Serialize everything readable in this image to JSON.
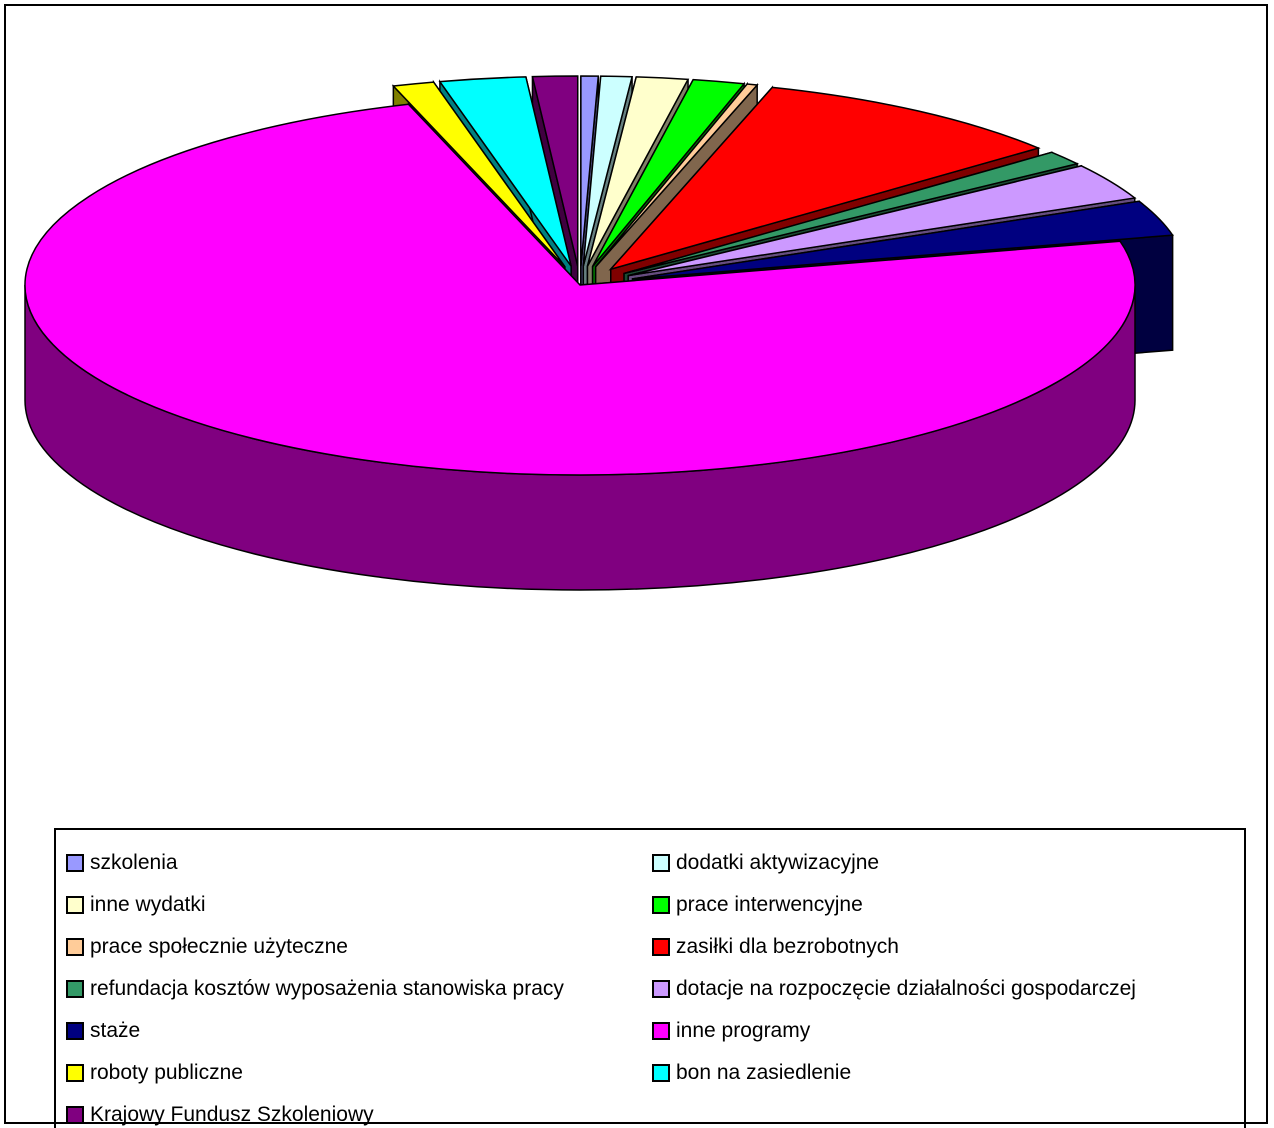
{
  "chart_data": {
    "type": "pie",
    "style": "3d-exploded",
    "slices": [
      {
        "label": "szkolenia",
        "value": 0.5,
        "color": "#9999ff"
      },
      {
        "label": "dodatki aktywizacyjne",
        "value": 0.9,
        "color": "#ccffff"
      },
      {
        "label": "inne wydatki",
        "value": 1.5,
        "color": "#ffffcc"
      },
      {
        "label": "prace interwencyjne",
        "value": 1.5,
        "color": "#00ff00"
      },
      {
        "label": "prace społecznie użyteczne",
        "value": 0.3,
        "color": "#ffcc99"
      },
      {
        "label": "zasiłki dla bezrobotnych",
        "value": 9.3,
        "color": "#ff0000"
      },
      {
        "label": "refundacja kosztów wyposażenia stanowiska pracy",
        "value": 1.2,
        "color": "#339966"
      },
      {
        "label": "dotacje na rozpoczęcie działalności gospodarczej",
        "value": 3.1,
        "color": "#cc99ff"
      },
      {
        "label": "staże",
        "value": 3.0,
        "color": "#000080"
      },
      {
        "label": "inne programy",
        "value": 73.7,
        "color": "#ff00ff"
      },
      {
        "label": "roboty publiczne",
        "value": 1.2,
        "color": "#ffff00"
      },
      {
        "label": "bon na zasiedlenie",
        "value": 2.5,
        "color": "#00ffff"
      },
      {
        "label": "Krajowy Fundusz Szkoleniowy",
        "value": 1.3,
        "color": "#800080"
      }
    ],
    "legend_position": "bottom"
  }
}
